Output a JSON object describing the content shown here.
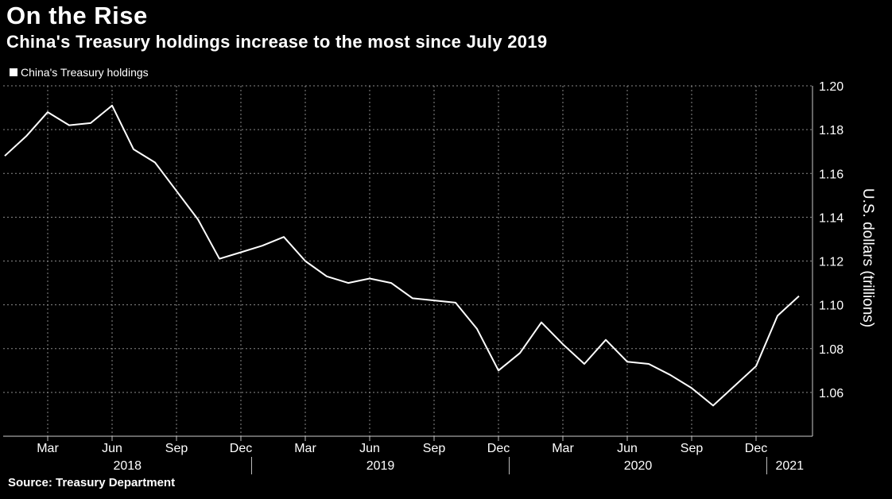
{
  "header": {
    "title": "On the Rise",
    "subtitle": "China's Treasury holdings increase to the most since July 2019"
  },
  "legend": {
    "label": "China's Treasury holdings",
    "color": "#ffffff"
  },
  "source": "Source: Treasury Department",
  "chart_data": {
    "type": "line",
    "ylabel": "U.S. dollars (trillions)",
    "ylim": [
      1.04,
      1.2
    ],
    "y_ticks": [
      "1.06",
      "1.08",
      "1.10",
      "1.12",
      "1.14",
      "1.16",
      "1.18",
      "1.20"
    ],
    "y_tick_values": [
      1.06,
      1.08,
      1.1,
      1.12,
      1.14,
      1.16,
      1.18,
      1.2
    ],
    "x_tick_labels": [
      "Mar",
      "Jun",
      "Sep",
      "Dec",
      "Mar",
      "Jun",
      "Sep",
      "Dec",
      "Mar",
      "Jun",
      "Sep",
      "Dec"
    ],
    "x_tick_months": [
      "2018-03",
      "2018-06",
      "2018-09",
      "2018-12",
      "2019-03",
      "2019-06",
      "2019-09",
      "2019-12",
      "2020-03",
      "2020-06",
      "2020-09",
      "2020-12"
    ],
    "year_labels": [
      "2018",
      "2019",
      "2020",
      "2021"
    ],
    "grid": true,
    "line_color": "#ffffff",
    "series": [
      {
        "name": "China's Treasury holdings",
        "x": [
          "2018-01",
          "2018-02",
          "2018-03",
          "2018-04",
          "2018-05",
          "2018-06",
          "2018-07",
          "2018-08",
          "2018-09",
          "2018-10",
          "2018-11",
          "2018-12",
          "2019-01",
          "2019-02",
          "2019-03",
          "2019-04",
          "2019-05",
          "2019-06",
          "2019-07",
          "2019-08",
          "2019-09",
          "2019-10",
          "2019-11",
          "2019-12",
          "2020-01",
          "2020-02",
          "2020-03",
          "2020-04",
          "2020-05",
          "2020-06",
          "2020-07",
          "2020-08",
          "2020-09",
          "2020-10",
          "2020-11",
          "2020-12",
          "2021-01",
          "2021-02"
        ],
        "values": [
          1.168,
          1.177,
          1.188,
          1.182,
          1.183,
          1.191,
          1.171,
          1.165,
          1.152,
          1.139,
          1.121,
          1.124,
          1.127,
          1.131,
          1.12,
          1.113,
          1.11,
          1.112,
          1.11,
          1.103,
          1.102,
          1.101,
          1.089,
          1.07,
          1.078,
          1.092,
          1.082,
          1.073,
          1.084,
          1.074,
          1.073,
          1.068,
          1.062,
          1.054,
          1.063,
          1.072,
          1.095,
          1.104
        ]
      }
    ]
  }
}
